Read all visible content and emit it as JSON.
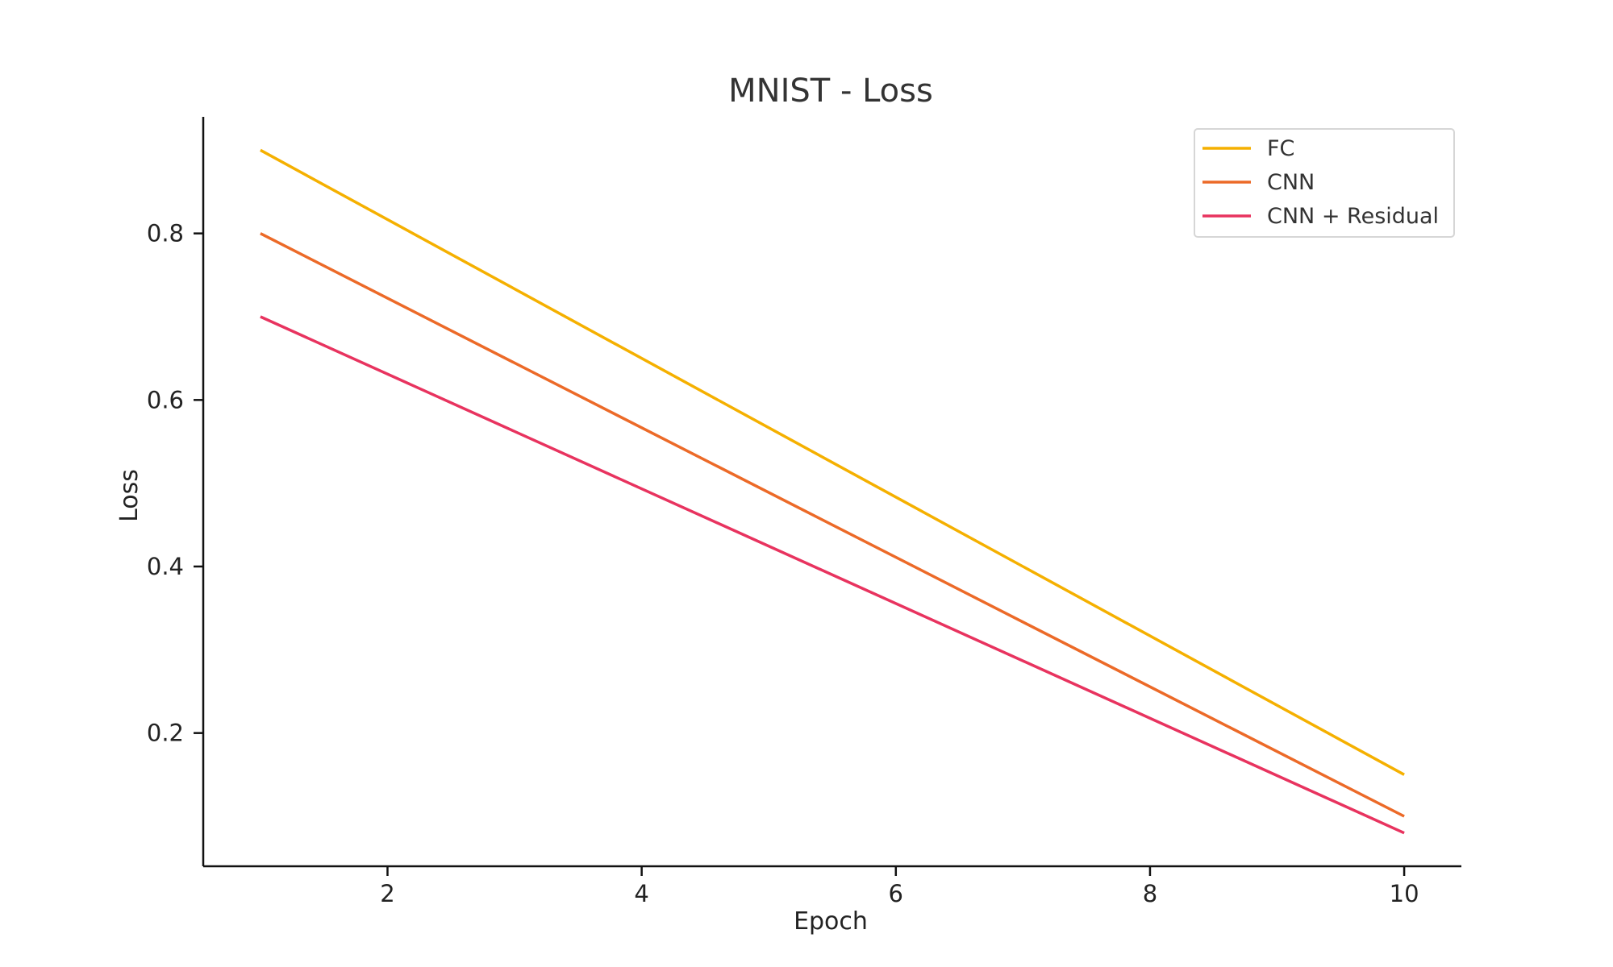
{
  "chart_data": {
    "type": "line",
    "title": "MNIST - Loss",
    "xlabel": "Epoch",
    "ylabel": "Loss",
    "xlim": [
      0.55,
      10.45
    ],
    "ylim": [
      0.04,
      0.94
    ],
    "xticks": [
      2,
      4,
      6,
      8,
      10
    ],
    "yticks": [
      0.2,
      0.4,
      0.6,
      0.8
    ],
    "xtick_labels": [
      "2",
      "4",
      "6",
      "8",
      "10"
    ],
    "ytick_labels": [
      "0.2",
      "0.4",
      "0.6",
      "0.8"
    ],
    "grid": false,
    "legend_position": "top-right",
    "series": [
      {
        "name": "FC",
        "color": "#F5B000",
        "x": [
          1,
          10
        ],
        "y": [
          0.9,
          0.15
        ]
      },
      {
        "name": "CNN",
        "color": "#EC6A28",
        "x": [
          1,
          10
        ],
        "y": [
          0.8,
          0.1
        ]
      },
      {
        "name": "CNN + Residual",
        "color": "#E8335F",
        "x": [
          1,
          10
        ],
        "y": [
          0.7,
          0.08
        ]
      }
    ]
  }
}
